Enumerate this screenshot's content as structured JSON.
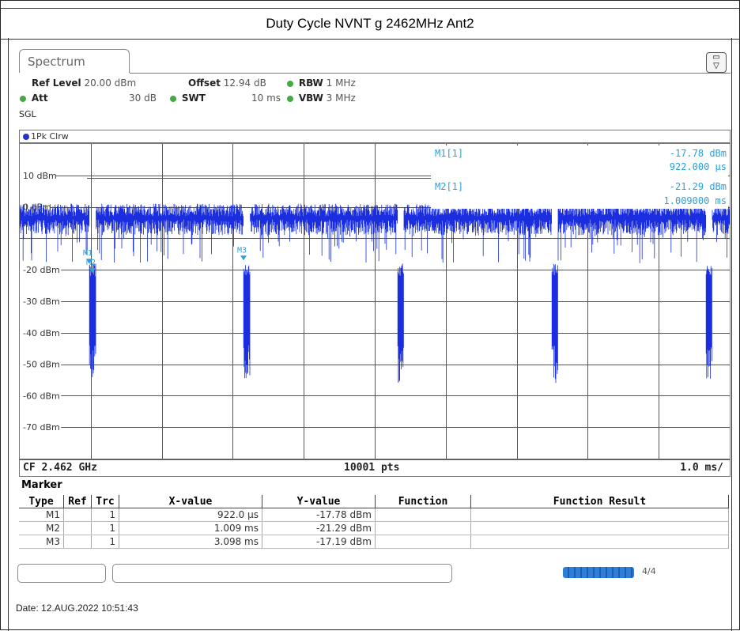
{
  "title": "Duty Cycle NVNT g 2462MHz Ant2",
  "tab_label": "Spectrum",
  "settings": {
    "ref_level_label": "Ref Level",
    "ref_level_value": "20.00 dBm",
    "offset_label": "Offset",
    "offset_value": "12.94 dB",
    "rbw_label": "RBW",
    "rbw_value": "1 MHz",
    "att_label": "Att",
    "att_value": "30 dB",
    "swt_label": "SWT",
    "swt_value": "10 ms",
    "vbw_label": "VBW",
    "vbw_value": "3 MHz",
    "mode": "SGL"
  },
  "trace_label": "1Pk Clrw",
  "plot": {
    "y_ticks": [
      "10 dBm",
      "0 dBm",
      "-20 dBm",
      "-30 dBm",
      "-40 dBm",
      "-50 dBm",
      "-60 dBm",
      "-70 dBm"
    ],
    "marker_readout": [
      {
        "name": "M1[1]",
        "level": "-17.78 dBm",
        "time": "922.000 µs"
      },
      {
        "name": "M2[1]",
        "level": "-21.29 dBm",
        "time": "1.009000 ms"
      }
    ],
    "marker_labels": [
      "M1",
      "M2",
      "M3"
    ],
    "trace_color": "#1a2ee0",
    "marker_color": "#2aa0e0"
  },
  "bottom": {
    "cf": "CF 2.462 GHz",
    "pts": "10001 pts",
    "span": "1.0 ms/"
  },
  "marker_table": {
    "title": "Marker",
    "headers": [
      "Type",
      "Ref",
      "Trc",
      "X-value",
      "Y-value",
      "Function",
      "Function Result"
    ],
    "rows": [
      [
        "M1",
        "",
        "1",
        "922.0 µs",
        "-17.78 dBm",
        "",
        ""
      ],
      [
        "M2",
        "",
        "1",
        "1.009 ms",
        "-21.29 dBm",
        "",
        ""
      ],
      [
        "M3",
        "",
        "1",
        "3.098 ms",
        "-17.19 dBm",
        "",
        ""
      ]
    ]
  },
  "status_right_label": "4/4",
  "date": "Date: 12.AUG.2022  10:51:43"
}
